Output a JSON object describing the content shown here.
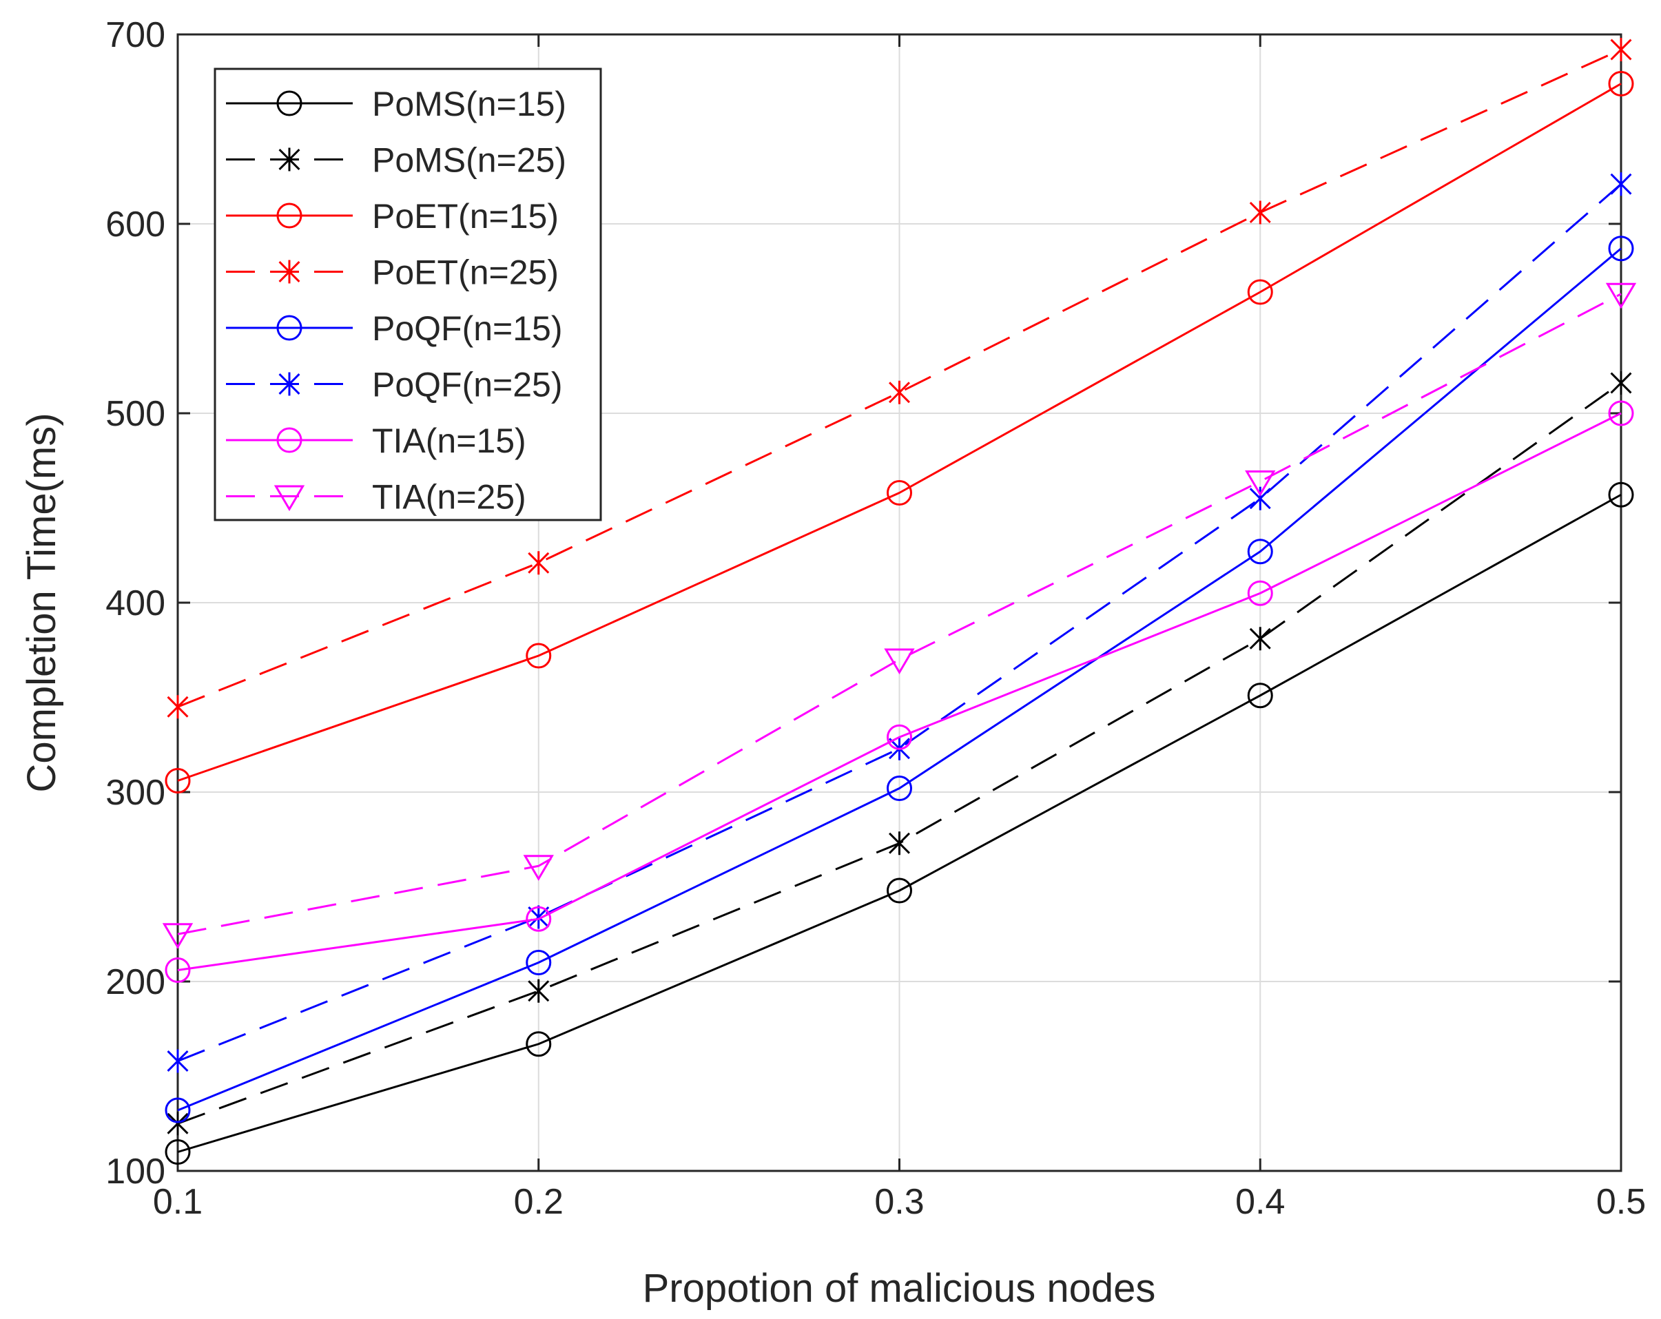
{
  "chart_data": {
    "type": "line",
    "title": "",
    "xlabel": "Propotion of malicious nodes",
    "ylabel": "Completion Time(ms)",
    "x": [
      0.1,
      0.2,
      0.3,
      0.4,
      0.5
    ],
    "xticks": [
      "0.1",
      "0.2",
      "0.3",
      "0.4",
      "0.5"
    ],
    "yticks": [
      "100",
      "200",
      "300",
      "400",
      "500",
      "600",
      "700"
    ],
    "xlim": [
      0.1,
      0.5
    ],
    "ylim": [
      100,
      700
    ],
    "grid": true,
    "legend_position": "top-left",
    "series": [
      {
        "name": "PoMS(n=15)",
        "color": "#000000",
        "dash": "solid",
        "marker": "circle",
        "values": [
          110,
          167,
          248,
          351,
          457
        ]
      },
      {
        "name": "PoMS(n=25)",
        "color": "#000000",
        "dash": "dashed",
        "marker": "asterisk",
        "values": [
          125,
          195,
          273,
          381,
          516
        ]
      },
      {
        "name": "PoET(n=15)",
        "color": "#ff0000",
        "dash": "solid",
        "marker": "circle",
        "values": [
          306,
          372,
          458,
          564,
          674
        ]
      },
      {
        "name": "PoET(n=25)",
        "color": "#ff0000",
        "dash": "dashed",
        "marker": "asterisk",
        "values": [
          345,
          421,
          511,
          606,
          692
        ]
      },
      {
        "name": "PoQF(n=15)",
        "color": "#0000ff",
        "dash": "solid",
        "marker": "circle",
        "values": [
          132,
          210,
          302,
          427,
          587
        ]
      },
      {
        "name": "PoQF(n=25)",
        "color": "#0000ff",
        "dash": "dashed",
        "marker": "asterisk",
        "values": [
          158,
          234,
          323,
          455,
          621
        ]
      },
      {
        "name": "TIA(n=15)",
        "color": "#ff00ff",
        "dash": "solid",
        "marker": "circle",
        "values": [
          206,
          233,
          329,
          405,
          500
        ]
      },
      {
        "name": "TIA(n=25)",
        "color": "#ff00ff",
        "dash": "dashed",
        "marker": "triangle-down",
        "values": [
          225,
          261,
          370,
          464,
          563
        ]
      }
    ]
  }
}
